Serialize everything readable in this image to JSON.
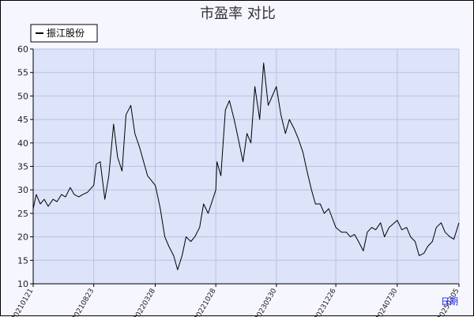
{
  "chart_data": {
    "type": "line",
    "title": "市盈率  对比",
    "xlabel": "日期",
    "ylabel": "",
    "ylim": [
      10,
      60
    ],
    "yticks": [
      10,
      15,
      20,
      25,
      30,
      35,
      40,
      45,
      50,
      55,
      60
    ],
    "xticks": [
      "20210121",
      "20210823",
      "20220328",
      "20221028",
      "20230530",
      "20231226",
      "20240730",
      "20250305"
    ],
    "grid": true,
    "legend": {
      "position": "top-left",
      "entries": [
        "振江股份"
      ]
    },
    "colors": {
      "plot_bg": "#dde3f8",
      "grid": "#b8c2e6",
      "line": "#000000",
      "page_bg": "#f6f6ff"
    },
    "series": [
      {
        "name": "振江股份",
        "x": [
          "20210121",
          "20210201",
          "20210215",
          "20210301",
          "20210315",
          "20210401",
          "20210415",
          "20210501",
          "20210515",
          "20210601",
          "20210615",
          "20210701",
          "20210715",
          "20210801",
          "20210823",
          "20210901",
          "20210915",
          "20211001",
          "20211015",
          "20211101",
          "20211115",
          "20211201",
          "20211215",
          "20220101",
          "20220115",
          "20220201",
          "20220215",
          "20220301",
          "20220328",
          "20220401",
          "20220415",
          "20220501",
          "20220515",
          "20220601",
          "20220615",
          "20220701",
          "20220715",
          "20220801",
          "20220815",
          "20220901",
          "20220915",
          "20221001",
          "20221028",
          "20221101",
          "20221115",
          "20221201",
          "20221215",
          "20230101",
          "20230115",
          "20230201",
          "20230215",
          "20230301",
          "20230315",
          "20230401",
          "20230415",
          "20230501",
          "20230530",
          "20230615",
          "20230701",
          "20230715",
          "20230801",
          "20230815",
          "20230901",
          "20230915",
          "20231001",
          "20231015",
          "20231101",
          "20231115",
          "20231201",
          "20231226",
          "20240115",
          "20240201",
          "20240215",
          "20240301",
          "20240315",
          "20240401",
          "20240415",
          "20240501",
          "20240515",
          "20240601",
          "20240615",
          "20240701",
          "20240730",
          "20240815",
          "20240901",
          "20240915",
          "20241001",
          "20241015",
          "20241101",
          "20241115",
          "20241201",
          "20241215",
          "20250101",
          "20250115",
          "20250201",
          "20250215",
          "20250305"
        ],
        "values": [
          26,
          29,
          27,
          28,
          26.5,
          28,
          27.5,
          29,
          28.5,
          30.5,
          29,
          28.5,
          29,
          29.5,
          31,
          35.5,
          36,
          28,
          33,
          44,
          37,
          34,
          46,
          48,
          42,
          39,
          36,
          33,
          31,
          30,
          26,
          20,
          18,
          16,
          13,
          16,
          20,
          19,
          20,
          22,
          27,
          25,
          30,
          36,
          33,
          47,
          49,
          45,
          41,
          36,
          42,
          40,
          52,
          45,
          57,
          48,
          52,
          46,
          42,
          45,
          43,
          41,
          38,
          34,
          30,
          27,
          27,
          25,
          26,
          22,
          21,
          21,
          20,
          20.5,
          19,
          17,
          21,
          22,
          21.5,
          23,
          20,
          22,
          23.5,
          21.5,
          22,
          20,
          19,
          16,
          16.5,
          18,
          19,
          22,
          23,
          21,
          20,
          19.5,
          23
        ]
      }
    ]
  }
}
